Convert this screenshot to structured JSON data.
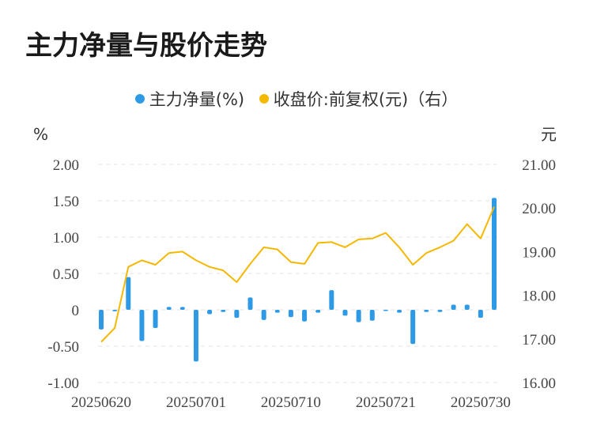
{
  "title": "主力净量与股价走势",
  "legend": {
    "bar_label": "主力净量(%)",
    "line_label": "收盘价:前复权(元)（右）"
  },
  "colors": {
    "bar": "#2e9ae6",
    "line": "#f5b800",
    "grid": "#e3e3e3"
  },
  "chart_data": {
    "type": "bar+line",
    "y_left_unit": "%",
    "y_right_unit": "元",
    "y_left_ticks": [
      "2.00",
      "1.50",
      "1.00",
      "0.50",
      "0",
      "-0.50",
      "-1.00"
    ],
    "y_right_ticks": [
      "21.00",
      "20.00",
      "19.00",
      "18.00",
      "17.00",
      "16.00"
    ],
    "y_left_range": [
      -1.0,
      2.0
    ],
    "y_right_range": [
      16.0,
      21.0
    ],
    "x_tick_labels": [
      {
        "index": 0,
        "label": "20250620"
      },
      {
        "index": 7,
        "label": "20250701"
      },
      {
        "index": 14,
        "label": "20250710"
      },
      {
        "index": 21,
        "label": "20250721"
      },
      {
        "index": 28,
        "label": "20250730"
      }
    ],
    "series": [
      {
        "name": "主力净量(%)",
        "type": "bar",
        "axis": "left",
        "values": [
          -0.27,
          -0.02,
          0.45,
          -0.43,
          -0.25,
          0.04,
          0.04,
          -0.71,
          -0.06,
          -0.03,
          -0.11,
          0.17,
          -0.14,
          -0.04,
          -0.1,
          -0.16,
          -0.04,
          0.27,
          -0.08,
          -0.17,
          -0.15,
          -0.01,
          -0.04,
          -0.47,
          -0.03,
          -0.03,
          0.07,
          0.07,
          -0.11,
          1.54
        ]
      },
      {
        "name": "收盘价:前复权(元)（右）",
        "type": "line",
        "axis": "right",
        "values": [
          16.93,
          17.25,
          18.65,
          18.8,
          18.7,
          18.97,
          19.0,
          18.8,
          18.65,
          18.57,
          18.3,
          18.72,
          19.1,
          19.05,
          18.76,
          18.72,
          19.2,
          19.22,
          19.1,
          19.28,
          19.3,
          19.43,
          19.1,
          18.7,
          18.97,
          19.1,
          19.25,
          19.63,
          19.3,
          20.03
        ]
      }
    ]
  }
}
